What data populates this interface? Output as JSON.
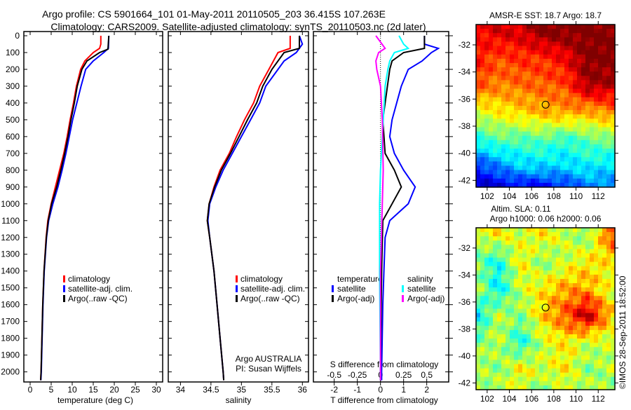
{
  "title": {
    "line1": "Argo profile: CS 5901664_101 01-May-2011 20110505_203 36.415S 107.263E",
    "line2": "Climatology: CARS2009. Satellite-adjusted climatology: synTS_20110503.nc (2d later)"
  },
  "copyright": "©IMOS 28-Sep-2011 18:52:00",
  "colors": {
    "climatology": "#ff0000",
    "satellite": "#0000ff",
    "argo": "#000000",
    "s_satellite": "#00ffff",
    "s_argo": "#ff00ff"
  },
  "chart_data": [
    {
      "type": "line",
      "id": "temperature",
      "xlabel": "temperature (deg C)",
      "ylabel": "depth",
      "xlim": [
        -1.5,
        31.5
      ],
      "ylim": [
        2060,
        -25
      ],
      "xticks": [
        "0",
        "5",
        "10",
        "15",
        "20",
        "25",
        "30"
      ],
      "yticks": [
        "0",
        "100",
        "200",
        "300",
        "400",
        "500",
        "600",
        "700",
        "800",
        "900",
        "1000",
        "1100",
        "1200",
        "1300",
        "1400",
        "1500",
        "1600",
        "1700",
        "1800",
        "1900",
        "2000"
      ],
      "legend": [
        "climatology",
        "satellite-adj. clim.",
        "Argo(..raw -QC)"
      ],
      "series": [
        {
          "name": "climatology",
          "color": "#ff0000",
          "depth": [
            0,
            50,
            75,
            100,
            150,
            200,
            300,
            400,
            500,
            600,
            700,
            800,
            900,
            1000,
            1100,
            1200,
            1400,
            1600,
            1800,
            2000,
            2050
          ],
          "values": [
            16.8,
            16.8,
            16.5,
            15,
            13,
            12,
            11,
            10.3,
            9.5,
            8.8,
            8,
            7,
            6,
            5,
            4.2,
            3.8,
            3.3,
            3,
            2.8,
            2.6,
            2.5
          ]
        },
        {
          "name": "satellite-adj. clim.",
          "color": "#0000ff",
          "depth": [
            0,
            75,
            100,
            150,
            200,
            300,
            400,
            500,
            600,
            700,
            800,
            900,
            1000,
            1100,
            1200,
            1400,
            1600,
            1800,
            2000,
            2050
          ],
          "values": [
            18.7,
            18.6,
            17.5,
            15,
            13.2,
            12.1,
            11.1,
            10.1,
            9.3,
            8.5,
            7.6,
            6.6,
            5.4,
            4.4,
            3.9,
            3.35,
            3.05,
            2.85,
            2.65,
            2.55
          ]
        },
        {
          "name": "Argo(..raw -QC)",
          "color": "#000000",
          "depth": [
            0,
            80,
            100,
            150,
            200,
            300,
            400,
            500,
            600,
            700,
            800,
            900,
            1000,
            1100,
            1200,
            1400,
            1600,
            1800,
            2000,
            2050
          ],
          "values": [
            18.7,
            18.5,
            16.5,
            13.5,
            12.3,
            11.2,
            10.5,
            9.7,
            9,
            8.2,
            7.3,
            6.3,
            5.1,
            4.3,
            3.85,
            3.3,
            3,
            2.8,
            2.6,
            2.5
          ]
        }
      ]
    },
    {
      "type": "line",
      "id": "salinity",
      "xlabel": "salinity",
      "xlim": [
        33.8,
        36.1
      ],
      "ylim": [
        2060,
        -25
      ],
      "xticks": [
        "34",
        "34.5",
        "35",
        "35.5",
        "36"
      ],
      "legend": [
        "climatology",
        "satellite-adj. clim.",
        "Argo(..raw -QC)"
      ],
      "annotation": [
        "Argo AUSTRALIA",
        "PI: Susan Wijffels"
      ],
      "series": [
        {
          "name": "climatology",
          "color": "#ff0000",
          "depth": [
            0,
            75,
            100,
            200,
            300,
            400,
            500,
            600,
            700,
            800,
            900,
            1000,
            1100,
            1200,
            1400,
            1600,
            1800,
            2000,
            2050
          ],
          "values": [
            35.8,
            35.8,
            35.6,
            35.45,
            35.3,
            35.2,
            35.05,
            34.92,
            34.8,
            34.65,
            34.55,
            34.47,
            34.44,
            34.48,
            34.55,
            34.6,
            34.65,
            34.7,
            34.71
          ]
        },
        {
          "name": "satellite-adj. clim.",
          "color": "#0000ff",
          "depth": [
            0,
            50,
            100,
            150,
            200,
            300,
            400,
            500,
            600,
            700,
            800,
            900,
            1000,
            1100,
            1200,
            1400,
            1600,
            1800,
            2000,
            2050
          ],
          "values": [
            35.95,
            36,
            35.9,
            35.7,
            35.6,
            35.4,
            35.3,
            35.15,
            35,
            34.85,
            34.7,
            34.58,
            34.48,
            34.45,
            34.48,
            34.55,
            34.6,
            34.65,
            34.7,
            34.71
          ]
        },
        {
          "name": "Argo(..raw -QC)",
          "color": "#000000",
          "depth": [
            0,
            75,
            100,
            200,
            300,
            400,
            500,
            600,
            700,
            800,
            900,
            1000,
            1100,
            1200,
            1400,
            1600,
            1800,
            2000,
            2050
          ],
          "values": [
            35.95,
            35.95,
            35.7,
            35.5,
            35.35,
            35.25,
            35.1,
            34.96,
            34.82,
            34.67,
            34.56,
            34.47,
            34.44,
            34.48,
            34.55,
            34.6,
            34.65,
            34.7,
            34.71
          ]
        }
      ]
    },
    {
      "type": "line",
      "id": "difference",
      "xlabel": "T difference from climatology",
      "x2label": "S difference from climatology",
      "xlim": [
        -2.9,
        2.95
      ],
      "s_xlim": [
        -0.725,
        0.7375
      ],
      "ylim": [
        2060,
        -25
      ],
      "xticks": [
        "-2",
        "-1",
        "0",
        "1",
        "2"
      ],
      "s_xticks": [
        "-0.5",
        "-0.25",
        "0",
        "0.25",
        "0.5"
      ],
      "legend": {
        "temperature_header": "temperature",
        "salinity_header": "salinity",
        "t_satellite": "satellite",
        "t_argo": "Argo(-adj)",
        "s_satellite": "satellite",
        "s_argo": "Argo(-adj)"
      },
      "series": [
        {
          "name": "T satellite",
          "axis": "T",
          "color": "#0000ff",
          "depth": [
            0,
            50,
            75,
            100,
            150,
            200,
            300,
            400,
            500,
            600,
            700,
            800,
            900,
            1000,
            1100,
            1200,
            1400,
            1600,
            2000,
            2050
          ],
          "values": [
            1.9,
            1.9,
            2.5,
            2.2,
            1.8,
            1.2,
            0.9,
            0.7,
            0.5,
            0.4,
            0.6,
            1.0,
            1.5,
            1.2,
            0.4,
            0.2,
            0.15,
            0.1,
            0.05,
            0.05
          ]
        },
        {
          "name": "T Argo",
          "axis": "T",
          "color": "#000000",
          "depth": [
            0,
            75,
            100,
            150,
            200,
            300,
            500,
            700,
            800,
            900,
            1000,
            1100,
            1400,
            2000,
            2050
          ],
          "values": [
            1.9,
            1.9,
            1.0,
            0.5,
            0.4,
            0.3,
            0.1,
            0.2,
            0.6,
            0.9,
            0.5,
            0.1,
            0.05,
            0,
            0
          ]
        },
        {
          "name": "S satellite",
          "axis": "S",
          "color": "#00ffff",
          "depth": [
            0,
            50,
            75,
            100,
            150,
            200,
            300,
            400,
            600,
            800,
            1000,
            1400,
            2000,
            2050
          ],
          "values": [
            0.2,
            0.25,
            0.3,
            0.15,
            0.1,
            0.08,
            0.05,
            0.04,
            0.02,
            0,
            -0.01,
            -0.01,
            0,
            0
          ]
        },
        {
          "name": "S Argo",
          "axis": "S",
          "color": "#ff00ff",
          "depth": [
            0,
            75,
            100,
            150,
            200,
            300,
            500,
            800,
            1000,
            1400,
            2000,
            2050
          ],
          "values": [
            -0.05,
            0.05,
            -0.02,
            -0.05,
            -0.04,
            0,
            0.02,
            0.03,
            0.02,
            0,
            0,
            0
          ]
        }
      ]
    },
    {
      "type": "heatmap",
      "id": "sst-map",
      "title": "AMSR-E SST: 18.7 Argo: 18.7",
      "xticks": [
        "102",
        "104",
        "106",
        "108",
        "110",
        "112"
      ],
      "yticks": [
        "-32",
        "-34",
        "-36",
        "-38",
        "-40",
        "-42"
      ],
      "xlim": [
        101,
        113.5
      ],
      "ylim": [
        -30.5,
        -42.5
      ],
      "clim": [
        14,
        20
      ],
      "argo_position": {
        "lon": 107.263,
        "lat": -36.415
      },
      "grid_lons": [
        101,
        103,
        105,
        107,
        109,
        111,
        113.5
      ],
      "grid_lats": [
        -31,
        -33,
        -35,
        -37,
        -39,
        -41,
        -42.5
      ],
      "grid": [
        [
          19.2,
          19.5,
          19.5,
          20,
          20,
          20,
          20
        ],
        [
          19.2,
          18.8,
          19,
          19,
          19.3,
          20,
          20
        ],
        [
          18.8,
          18.5,
          18.6,
          18.7,
          18.8,
          19.8,
          19.7
        ],
        [
          17.5,
          17.8,
          18,
          18.2,
          18.3,
          18.2,
          18.5
        ],
        [
          16.4,
          16.8,
          16.7,
          16.8,
          16.5,
          16.8,
          17
        ],
        [
          15,
          15.5,
          16,
          16,
          16,
          16.2,
          16
        ],
        [
          14.3,
          14.5,
          14.7,
          14.7,
          15,
          15.5,
          15.5
        ]
      ]
    },
    {
      "type": "heatmap",
      "id": "sla-map",
      "title": "Altim. SLA: 0.11",
      "subtitle": "Argo h1000: 0.06 h2000: 0.06",
      "xticks": [
        "102",
        "104",
        "106",
        "108",
        "110",
        "112"
      ],
      "yticks": [
        "-32",
        "-34",
        "-36",
        "-38",
        "-40",
        "-42"
      ],
      "xlim": [
        101,
        113.5
      ],
      "ylim": [
        -30.5,
        -42.5
      ],
      "clim": [
        -0.35,
        0.35
      ],
      "argo_position": {
        "lon": 107.263,
        "lat": -36.415
      },
      "grid_lons": [
        101,
        103,
        105,
        107,
        109,
        111,
        113.5
      ],
      "grid_lats": [
        -31,
        -33,
        -35,
        -37,
        -39,
        -41,
        -42.5
      ],
      "grid": [
        [
          0.05,
          0.1,
          0.05,
          0.1,
          0.05,
          0,
          0.25
        ],
        [
          0,
          -0.08,
          0.1,
          0,
          0.05,
          0.1,
          0.1
        ],
        [
          0.05,
          -0.1,
          0.05,
          0.1,
          0.15,
          0.15,
          0.05
        ],
        [
          -0.12,
          0.05,
          0,
          0.12,
          0.2,
          0.32,
          0.1
        ],
        [
          0,
          0.05,
          -0.08,
          0.05,
          0.1,
          0.05,
          0.05
        ],
        [
          0.05,
          0,
          0.1,
          0.05,
          0.1,
          0,
          0.05
        ],
        [
          0,
          0.05,
          0.05,
          0,
          0.05,
          0.05,
          0
        ]
      ]
    }
  ]
}
